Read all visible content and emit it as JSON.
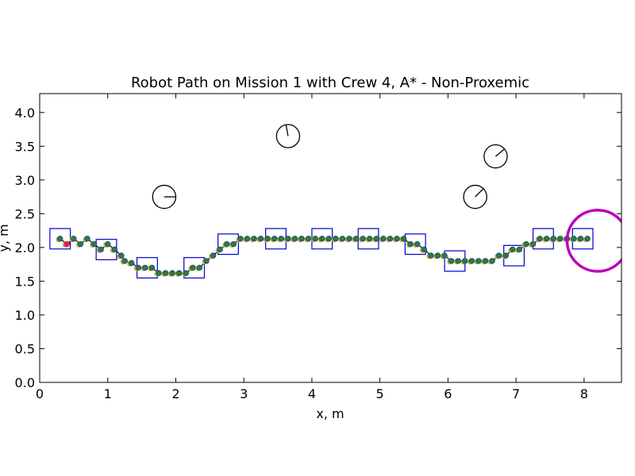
{
  "chart_data": {
    "type": "scatter",
    "title": "Robot Path on Mission 1 with Crew 4, A* - Non-Proxemic",
    "xlabel": "x, m",
    "ylabel": "y, m",
    "xlim": [
      0,
      8.55
    ],
    "ylim": [
      0,
      4.28
    ],
    "xticks": [
      0,
      1,
      2,
      3,
      4,
      5,
      6,
      7,
      8
    ],
    "yticks": [
      0.0,
      0.5,
      1.0,
      1.5,
      2.0,
      2.5,
      3.0,
      3.5,
      4.0
    ],
    "xtick_labels": [
      "0",
      "1",
      "2",
      "3",
      "4",
      "5",
      "6",
      "7",
      "8"
    ],
    "ytick_labels": [
      "0.0",
      "0.5",
      "1.0",
      "1.5",
      "2.0",
      "2.5",
      "3.0",
      "3.5",
      "4.0"
    ],
    "grid": false,
    "legend": "none",
    "colors": {
      "path_line": "#000000",
      "planned_points": "#c8b43c",
      "actual_points": "#2f7f2f",
      "actual_edge": "#1f3f9f",
      "start_point": "#e0204a",
      "waypoint_boxes": "#0000cc",
      "goal_circle": "#bb00bb",
      "crew_circles": "#000000"
    },
    "start": {
      "x": 0.4,
      "y": 2.05
    },
    "path": [
      [
        0.3,
        2.13
      ],
      [
        0.4,
        2.05
      ],
      [
        0.5,
        2.13
      ],
      [
        0.6,
        2.05
      ],
      [
        0.7,
        2.13
      ],
      [
        0.8,
        2.05
      ],
      [
        0.9,
        1.97
      ],
      [
        1.0,
        2.05
      ],
      [
        1.1,
        1.97
      ],
      [
        1.2,
        1.88
      ],
      [
        1.25,
        1.8
      ],
      [
        1.35,
        1.77
      ],
      [
        1.45,
        1.7
      ],
      [
        1.55,
        1.7
      ],
      [
        1.65,
        1.7
      ],
      [
        1.75,
        1.62
      ],
      [
        1.85,
        1.62
      ],
      [
        1.95,
        1.62
      ],
      [
        2.05,
        1.62
      ],
      [
        2.15,
        1.62
      ],
      [
        2.25,
        1.7
      ],
      [
        2.35,
        1.7
      ],
      [
        2.45,
        1.8
      ],
      [
        2.55,
        1.88
      ],
      [
        2.65,
        1.97
      ],
      [
        2.75,
        2.05
      ],
      [
        2.85,
        2.05
      ],
      [
        2.95,
        2.13
      ],
      [
        3.05,
        2.13
      ],
      [
        3.15,
        2.13
      ],
      [
        3.25,
        2.13
      ],
      [
        3.35,
        2.13
      ],
      [
        3.45,
        2.13
      ],
      [
        3.55,
        2.13
      ],
      [
        3.65,
        2.13
      ],
      [
        3.75,
        2.13
      ],
      [
        3.85,
        2.13
      ],
      [
        3.95,
        2.13
      ],
      [
        4.05,
        2.13
      ],
      [
        4.15,
        2.13
      ],
      [
        4.25,
        2.13
      ],
      [
        4.35,
        2.13
      ],
      [
        4.45,
        2.13
      ],
      [
        4.55,
        2.13
      ],
      [
        4.65,
        2.13
      ],
      [
        4.75,
        2.13
      ],
      [
        4.85,
        2.13
      ],
      [
        4.95,
        2.13
      ],
      [
        5.05,
        2.13
      ],
      [
        5.15,
        2.13
      ],
      [
        5.25,
        2.13
      ],
      [
        5.35,
        2.13
      ],
      [
        5.45,
        2.05
      ],
      [
        5.55,
        2.05
      ],
      [
        5.65,
        1.97
      ],
      [
        5.75,
        1.88
      ],
      [
        5.85,
        1.88
      ],
      [
        5.95,
        1.88
      ],
      [
        6.05,
        1.8
      ],
      [
        6.15,
        1.8
      ],
      [
        6.25,
        1.8
      ],
      [
        6.35,
        1.8
      ],
      [
        6.45,
        1.8
      ],
      [
        6.55,
        1.8
      ],
      [
        6.65,
        1.8
      ],
      [
        6.75,
        1.88
      ],
      [
        6.85,
        1.88
      ],
      [
        6.95,
        1.97
      ],
      [
        7.05,
        1.97
      ],
      [
        7.15,
        2.05
      ],
      [
        7.25,
        2.05
      ],
      [
        7.35,
        2.13
      ],
      [
        7.45,
        2.13
      ],
      [
        7.55,
        2.13
      ],
      [
        7.65,
        2.13
      ],
      [
        7.75,
        2.13
      ],
      [
        7.85,
        2.13
      ],
      [
        7.95,
        2.13
      ],
      [
        8.05,
        2.13
      ]
    ],
    "waypoints": [
      [
        0.3,
        2.13
      ],
      [
        0.98,
        1.97
      ],
      [
        1.58,
        1.7
      ],
      [
        2.27,
        1.7
      ],
      [
        2.77,
        2.05
      ],
      [
        3.47,
        2.13
      ],
      [
        4.15,
        2.13
      ],
      [
        4.83,
        2.13
      ],
      [
        5.52,
        2.05
      ],
      [
        6.1,
        1.8
      ],
      [
        6.97,
        1.88
      ],
      [
        7.4,
        2.13
      ],
      [
        7.98,
        2.13
      ]
    ],
    "waypoint_box_size": 0.3,
    "goal": {
      "x": 8.2,
      "y": 2.1,
      "r": 0.45
    },
    "crew": [
      {
        "x": 1.83,
        "y": 2.75,
        "r": 0.17,
        "heading_deg": 0
      },
      {
        "x": 3.65,
        "y": 3.65,
        "r": 0.17,
        "heading_deg": 100
      },
      {
        "x": 6.4,
        "y": 2.75,
        "r": 0.17,
        "heading_deg": 45
      },
      {
        "x": 6.7,
        "y": 3.35,
        "r": 0.17,
        "heading_deg": 40
      }
    ]
  }
}
